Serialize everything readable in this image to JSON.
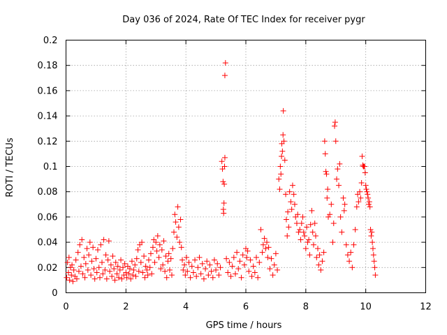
{
  "chart_data": {
    "type": "scatter",
    "title": "Day 036 of 2024, Rate Of TEC Index for receiver pygr",
    "xlabel": "GPS time / hours",
    "ylabel": "ROTI / TECUs",
    "xlim": [
      0,
      12
    ],
    "ylim": [
      0,
      0.2
    ],
    "xticks": [
      0,
      2,
      4,
      6,
      8,
      10,
      12
    ],
    "xtick_labels": [
      "0",
      "2",
      "4",
      "6",
      "8",
      "10",
      "12"
    ],
    "yticks": [
      0,
      0.02,
      0.04,
      0.06,
      0.08,
      0.1,
      0.12,
      0.14,
      0.16,
      0.18,
      0.2
    ],
    "ytick_labels": [
      "0",
      "0.02",
      "0.04",
      "0.06",
      "0.08",
      "0.1",
      "0.12",
      "0.14",
      "0.16",
      "0.18",
      "0.2"
    ],
    "grid": true,
    "marker": "+",
    "color": "#ff0000",
    "series": [
      {
        "name": "ROTI",
        "points": [
          [
            0.02,
            0.012
          ],
          [
            0.05,
            0.024
          ],
          [
            0.08,
            0.016
          ],
          [
            0.1,
            0.028
          ],
          [
            0.12,
            0.01
          ],
          [
            0.15,
            0.02
          ],
          [
            0.18,
            0.014
          ],
          [
            0.2,
            0.022
          ],
          [
            0.23,
            0.009
          ],
          [
            0.26,
            0.018
          ],
          [
            0.3,
            0.013
          ],
          [
            0.33,
            0.026
          ],
          [
            0.36,
            0.011
          ],
          [
            0.4,
            0.032
          ],
          [
            0.43,
            0.017
          ],
          [
            0.46,
            0.038
          ],
          [
            0.5,
            0.021
          ],
          [
            0.53,
            0.042
          ],
          [
            0.56,
            0.015
          ],
          [
            0.6,
            0.028
          ],
          [
            0.63,
            0.012
          ],
          [
            0.66,
            0.023
          ],
          [
            0.7,
            0.035
          ],
          [
            0.73,
            0.018
          ],
          [
            0.76,
            0.03
          ],
          [
            0.8,
            0.04
          ],
          [
            0.83,
            0.014
          ],
          [
            0.86,
            0.025
          ],
          [
            0.9,
            0.036
          ],
          [
            0.93,
            0.019
          ],
          [
            0.96,
            0.011
          ],
          [
            1.0,
            0.027
          ],
          [
            1.03,
            0.016
          ],
          [
            1.06,
            0.034
          ],
          [
            1.1,
            0.02
          ],
          [
            1.13,
            0.012
          ],
          [
            1.16,
            0.038
          ],
          [
            1.2,
            0.024
          ],
          [
            1.23,
            0.015
          ],
          [
            1.26,
            0.042
          ],
          [
            1.3,
            0.018
          ],
          [
            1.33,
            0.03
          ],
          [
            1.36,
            0.011
          ],
          [
            1.4,
            0.026
          ],
          [
            1.43,
            0.041
          ],
          [
            1.46,
            0.017
          ],
          [
            1.5,
            0.022
          ],
          [
            1.53,
            0.013
          ],
          [
            1.56,
            0.029
          ],
          [
            1.6,
            0.019
          ],
          [
            1.63,
            0.01
          ],
          [
            1.66,
            0.024
          ],
          [
            1.7,
            0.015
          ],
          [
            1.73,
            0.021
          ],
          [
            1.76,
            0.012
          ],
          [
            1.8,
            0.018
          ],
          [
            1.83,
            0.026
          ],
          [
            1.86,
            0.011
          ],
          [
            1.9,
            0.02
          ],
          [
            1.93,
            0.014
          ],
          [
            1.96,
            0.023
          ],
          [
            2.0,
            0.016
          ],
          [
            2.03,
            0.012
          ],
          [
            2.06,
            0.021
          ],
          [
            2.1,
            0.015
          ],
          [
            2.13,
            0.019
          ],
          [
            2.16,
            0.011
          ],
          [
            2.2,
            0.025
          ],
          [
            2.23,
            0.014
          ],
          [
            2.26,
            0.018
          ],
          [
            2.3,
            0.022
          ],
          [
            2.33,
            0.013
          ],
          [
            2.36,
            0.027
          ],
          [
            2.4,
            0.034
          ],
          [
            2.43,
            0.017
          ],
          [
            2.46,
            0.038
          ],
          [
            2.5,
            0.024
          ],
          [
            2.53,
            0.04
          ],
          [
            2.56,
            0.016
          ],
          [
            2.6,
            0.029
          ],
          [
            2.63,
            0.012
          ],
          [
            2.66,
            0.021
          ],
          [
            2.7,
            0.018
          ],
          [
            2.73,
            0.014
          ],
          [
            2.76,
            0.026
          ],
          [
            2.8,
            0.02
          ],
          [
            2.83,
            0.031
          ],
          [
            2.86,
            0.015
          ],
          [
            2.9,
            0.036
          ],
          [
            2.93,
            0.042
          ],
          [
            2.96,
            0.024
          ],
          [
            3.0,
            0.04
          ],
          [
            3.03,
            0.033
          ],
          [
            3.06,
            0.045
          ],
          [
            3.1,
            0.028
          ],
          [
            3.13,
            0.038
          ],
          [
            3.16,
            0.019
          ],
          [
            3.2,
            0.034
          ],
          [
            3.23,
            0.022
          ],
          [
            3.26,
            0.041
          ],
          [
            3.3,
            0.017
          ],
          [
            3.33,
            0.029
          ],
          [
            3.36,
            0.012
          ],
          [
            3.4,
            0.025
          ],
          [
            3.43,
            0.031
          ],
          [
            3.46,
            0.018
          ],
          [
            3.5,
            0.027
          ],
          [
            3.53,
            0.014
          ],
          [
            3.56,
            0.035
          ],
          [
            3.6,
            0.048
          ],
          [
            3.63,
            0.062
          ],
          [
            3.66,
            0.056
          ],
          [
            3.7,
            0.044
          ],
          [
            3.73,
            0.068
          ],
          [
            3.76,
            0.052
          ],
          [
            3.79,
            0.04
          ],
          [
            3.82,
            0.058
          ],
          [
            3.85,
            0.036
          ],
          [
            3.88,
            0.026
          ],
          [
            3.91,
            0.018
          ],
          [
            3.95,
            0.022
          ],
          [
            3.98,
            0.014
          ],
          [
            4.02,
            0.028
          ],
          [
            4.05,
            0.017
          ],
          [
            4.1,
            0.024
          ],
          [
            4.15,
            0.012
          ],
          [
            4.2,
            0.021
          ],
          [
            4.25,
            0.016
          ],
          [
            4.3,
            0.026
          ],
          [
            4.35,
            0.013
          ],
          [
            4.4,
            0.02
          ],
          [
            4.45,
            0.028
          ],
          [
            4.5,
            0.015
          ],
          [
            4.55,
            0.023
          ],
          [
            4.6,
            0.011
          ],
          [
            4.65,
            0.019
          ],
          [
            4.7,
            0.025
          ],
          [
            4.75,
            0.014
          ],
          [
            4.8,
            0.022
          ],
          [
            4.85,
            0.017
          ],
          [
            4.9,
            0.012
          ],
          [
            4.95,
            0.026
          ],
          [
            5.0,
            0.018
          ],
          [
            5.05,
            0.023
          ],
          [
            5.1,
            0.014
          ],
          [
            5.15,
            0.02
          ],
          [
            5.2,
            0.104
          ],
          [
            5.22,
            0.098
          ],
          [
            5.24,
            0.088
          ],
          [
            5.25,
            0.066
          ],
          [
            5.26,
            0.063
          ],
          [
            5.27,
            0.071
          ],
          [
            5.28,
            0.086
          ],
          [
            5.29,
            0.1
          ],
          [
            5.3,
            0.107
          ],
          [
            5.3,
            0.172
          ],
          [
            5.32,
            0.182
          ],
          [
            5.35,
            0.027
          ],
          [
            5.4,
            0.016
          ],
          [
            5.45,
            0.024
          ],
          [
            5.5,
            0.013
          ],
          [
            5.55,
            0.021
          ],
          [
            5.6,
            0.028
          ],
          [
            5.65,
            0.015
          ],
          [
            5.7,
            0.032
          ],
          [
            5.75,
            0.019
          ],
          [
            5.8,
            0.025
          ],
          [
            5.85,
            0.012
          ],
          [
            5.9,
            0.03
          ],
          [
            5.95,
            0.022
          ],
          [
            6.0,
            0.035
          ],
          [
            6.03,
            0.028
          ],
          [
            6.06,
            0.033
          ],
          [
            6.1,
            0.017
          ],
          [
            6.15,
            0.026
          ],
          [
            6.2,
            0.013
          ],
          [
            6.25,
            0.021
          ],
          [
            6.3,
            0.016
          ],
          [
            6.35,
            0.028
          ],
          [
            6.4,
            0.012
          ],
          [
            6.45,
            0.024
          ],
          [
            6.5,
            0.05
          ],
          [
            6.55,
            0.032
          ],
          [
            6.58,
            0.038
          ],
          [
            6.62,
            0.043
          ],
          [
            6.66,
            0.035
          ],
          [
            6.7,
            0.04
          ],
          [
            6.73,
            0.028
          ],
          [
            6.76,
            0.036
          ],
          [
            6.8,
            0.019
          ],
          [
            6.85,
            0.027
          ],
          [
            6.9,
            0.014
          ],
          [
            6.95,
            0.022
          ],
          [
            7.0,
            0.031
          ],
          [
            7.05,
            0.018
          ],
          [
            7.1,
            0.09
          ],
          [
            7.13,
            0.082
          ],
          [
            7.15,
            0.1
          ],
          [
            7.17,
            0.094
          ],
          [
            7.19,
            0.108
          ],
          [
            7.2,
            0.118
          ],
          [
            7.22,
            0.112
          ],
          [
            7.24,
            0.125
          ],
          [
            7.25,
            0.144
          ],
          [
            7.27,
            0.12
          ],
          [
            7.3,
            0.105
          ],
          [
            7.33,
            0.078
          ],
          [
            7.35,
            0.058
          ],
          [
            7.38,
            0.045
          ],
          [
            7.4,
            0.064
          ],
          [
            7.43,
            0.052
          ],
          [
            7.46,
            0.08
          ],
          [
            7.5,
            0.072
          ],
          [
            7.53,
            0.066
          ],
          [
            7.56,
            0.085
          ],
          [
            7.6,
            0.078
          ],
          [
            7.63,
            0.07
          ],
          [
            7.66,
            0.06
          ],
          [
            7.7,
            0.055
          ],
          [
            7.73,
            0.062
          ],
          [
            7.76,
            0.048
          ],
          [
            7.8,
            0.05
          ],
          [
            7.83,
            0.042
          ],
          [
            7.86,
            0.055
          ],
          [
            7.9,
            0.06
          ],
          [
            7.93,
            0.048
          ],
          [
            7.96,
            0.045
          ],
          [
            8.0,
            0.035
          ],
          [
            8.03,
            0.052
          ],
          [
            8.06,
            0.04
          ],
          [
            8.1,
            0.042
          ],
          [
            8.13,
            0.03
          ],
          [
            8.16,
            0.054
          ],
          [
            8.2,
            0.065
          ],
          [
            8.23,
            0.048
          ],
          [
            8.26,
            0.038
          ],
          [
            8.3,
            0.055
          ],
          [
            8.33,
            0.045
          ],
          [
            8.36,
            0.028
          ],
          [
            8.4,
            0.035
          ],
          [
            8.43,
            0.022
          ],
          [
            8.46,
            0.03
          ],
          [
            8.5,
            0.018
          ],
          [
            8.55,
            0.025
          ],
          [
            8.6,
            0.032
          ],
          [
            8.63,
            0.12
          ],
          [
            8.65,
            0.11
          ],
          [
            8.67,
            0.096
          ],
          [
            8.69,
            0.094
          ],
          [
            8.71,
            0.075
          ],
          [
            8.73,
            0.082
          ],
          [
            8.75,
            0.06
          ],
          [
            8.8,
            0.062
          ],
          [
            8.85,
            0.07
          ],
          [
            8.9,
            0.04
          ],
          [
            8.93,
            0.055
          ],
          [
            8.96,
            0.132
          ],
          [
            8.98,
            0.135
          ],
          [
            9.0,
            0.12
          ],
          [
            9.03,
            0.09
          ],
          [
            9.06,
            0.098
          ],
          [
            9.1,
            0.085
          ],
          [
            9.13,
            0.102
          ],
          [
            9.16,
            0.06
          ],
          [
            9.2,
            0.048
          ],
          [
            9.25,
            0.075
          ],
          [
            9.28,
            0.065
          ],
          [
            9.3,
            0.07
          ],
          [
            9.35,
            0.038
          ],
          [
            9.4,
            0.03
          ],
          [
            9.45,
            0.025
          ],
          [
            9.5,
            0.032
          ],
          [
            9.55,
            0.02
          ],
          [
            9.6,
            0.038
          ],
          [
            9.65,
            0.05
          ],
          [
            9.7,
            0.068
          ],
          [
            9.73,
            0.078
          ],
          [
            9.76,
            0.072
          ],
          [
            9.8,
            0.08
          ],
          [
            9.83,
            0.075
          ],
          [
            9.86,
            0.087
          ],
          [
            9.88,
            0.108
          ],
          [
            9.9,
            0.101
          ],
          [
            9.92,
            0.1
          ],
          [
            9.94,
            0.1
          ],
          [
            9.96,
            0.1
          ],
          [
            9.98,
            0.095
          ],
          [
            10.0,
            0.085
          ],
          [
            10.02,
            0.082
          ],
          [
            10.04,
            0.08
          ],
          [
            10.06,
            0.078
          ],
          [
            10.08,
            0.075
          ],
          [
            10.1,
            0.07
          ],
          [
            10.12,
            0.072
          ],
          [
            10.14,
            0.068
          ],
          [
            10.16,
            0.05
          ],
          [
            10.18,
            0.045
          ],
          [
            10.2,
            0.048
          ],
          [
            10.22,
            0.04
          ],
          [
            10.24,
            0.035
          ],
          [
            10.26,
            0.03
          ],
          [
            10.28,
            0.025
          ],
          [
            10.3,
            0.02
          ],
          [
            10.32,
            0.014
          ]
        ]
      }
    ]
  }
}
